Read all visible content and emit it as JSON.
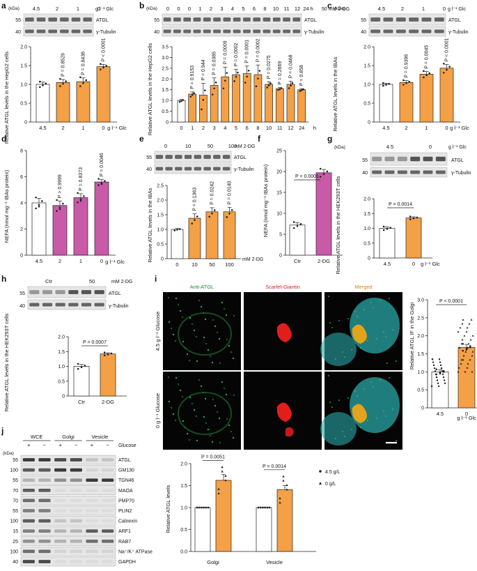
{
  "colors": {
    "orange": "#f4a046",
    "magenta": "#c85aa8",
    "white": "#ffffff",
    "axis": "#222222",
    "blot_bg": "#e6e6e6",
    "band": "#3a3a3a"
  },
  "panels": {
    "a": {
      "letter": "a",
      "unit": "g l⁻¹ Glc",
      "conds": [
        "4.5",
        "2",
        "1",
        "0"
      ],
      "blots": [
        "ATGL",
        "γ-Tubulin"
      ],
      "mw": [
        "55",
        "40"
      ],
      "ylabel": "Relative ATGL levels in the HepG2 cells",
      "xunit": "g l⁻¹ Glc",
      "ticks": [
        "0",
        "0.5",
        "1.0",
        "1.5",
        "2.0"
      ],
      "chart_data": {
        "type": "bar",
        "categories": [
          "4.5",
          "2",
          "1",
          "0"
        ],
        "values": [
          1.0,
          1.05,
          1.07,
          1.47
        ],
        "errors": [
          0.06,
          0.08,
          0.1,
          0.06
        ],
        "pvals": [
          "",
          "P = 0.8529",
          "P = 0.8436",
          "P < 0.0001"
        ],
        "ylim": [
          0,
          2.0
        ],
        "colors": [
          "white",
          "orange",
          "orange",
          "orange"
        ]
      }
    },
    "b": {
      "letter": "b",
      "unit": "50 mM 2-DG",
      "conds": [
        "0",
        "0",
        "0",
        "1",
        "2",
        "3",
        "4",
        "5",
        "6",
        "8",
        "10",
        "11",
        "12",
        "24 h"
      ],
      "blots": [
        "ATGL",
        "γ-Tubulin"
      ],
      "mw": [
        "55",
        "40"
      ],
      "ylabel": "Relative ATGL levels in the HepG2 cells",
      "xunit": "h",
      "ticks": [
        "0",
        "0.5",
        "1.0",
        "1.5",
        "2.0",
        "2.5",
        "3.0",
        "3.5"
      ],
      "chart_data": {
        "type": "bar",
        "categories": [
          "0",
          "1",
          "2",
          "3",
          "4",
          "5",
          "6",
          "8",
          "10",
          "11",
          "12",
          "24"
        ],
        "values": [
          1.0,
          1.3,
          1.25,
          1.7,
          2.1,
          2.2,
          2.25,
          2.2,
          1.75,
          1.55,
          1.75,
          1.5
        ],
        "errors": [
          0.05,
          0.1,
          0.55,
          0.35,
          0.45,
          0.25,
          0.35,
          0.45,
          0.12,
          0.05,
          0.15,
          0.05
        ],
        "pvals": [
          "",
          "P = 0.9153",
          "P = 0.944",
          "P = 0.0385",
          "P = 0.0009",
          "P = 0.0002",
          "P = 0.0001",
          "P = 0.0002",
          "P = 0.0275",
          "P = 0.2669",
          "P = 0.0468",
          "P = 0.858"
        ],
        "ylim": [
          0,
          3.5
        ],
        "colors": [
          "white",
          "orange",
          "orange",
          "orange",
          "orange",
          "orange",
          "orange",
          "orange",
          "orange",
          "orange",
          "orange",
          "orange"
        ]
      }
    },
    "c": {
      "letter": "c",
      "unit": "g l⁻¹ Glc",
      "conds": [
        "4.5",
        "2",
        "1",
        "0"
      ],
      "blots": [
        "ATGL",
        "γ-Tubulin"
      ],
      "mw": [
        "55",
        "40"
      ],
      "ylabel": "Relative ATGL levels in the IBAs",
      "xunit": "g l⁻¹ Glc",
      "ticks": [
        "0",
        "0.5",
        "1.0",
        "1.5",
        "2.0"
      ],
      "chart_data": {
        "type": "bar",
        "categories": [
          "4.5",
          "2",
          "1",
          "0"
        ],
        "values": [
          1.0,
          1.05,
          1.27,
          1.43
        ],
        "errors": [
          0.03,
          0.05,
          0.07,
          0.1
        ],
        "pvals": [
          "",
          "P = 0.9396",
          "P = 0.0045",
          "P < 0.0001"
        ],
        "ylim": [
          0,
          2.0
        ],
        "colors": [
          "white",
          "orange",
          "orange",
          "orange"
        ]
      }
    },
    "d": {
      "letter": "d",
      "ylabel": "NEFA (nmol mg⁻¹ IBAs protein)",
      "xunit": "g l⁻¹ Glc",
      "ticks": [
        "0",
        "2",
        "4",
        "6",
        "8"
      ],
      "chart_data": {
        "type": "bar",
        "categories": [
          "4.5",
          "2",
          "1",
          "0"
        ],
        "values": [
          4.0,
          3.8,
          4.4,
          5.6
        ],
        "errors": [
          0.35,
          0.35,
          0.3,
          0.2
        ],
        "pvals": [
          "",
          "P > 0.9999",
          "P = 0.8373",
          "P = 0.0046"
        ],
        "ylim": [
          0,
          8
        ],
        "colors": [
          "white",
          "magenta",
          "magenta",
          "magenta"
        ]
      }
    },
    "e": {
      "letter": "e",
      "unit": "mM 2-DG",
      "conds": [
        "0",
        "10",
        "50",
        "100"
      ],
      "blots": [
        "ATGL",
        "γ-Tubulin"
      ],
      "mw": [
        "55",
        "40"
      ],
      "ylabel": "Relative ATGL levels in the IBAs",
      "xunit": "mM 2-DG",
      "ticks": [
        "0",
        "0.5",
        "1.0",
        "1.5",
        "2.0",
        "2.5"
      ],
      "chart_data": {
        "type": "bar",
        "categories": [
          "0",
          "10",
          "50",
          "100"
        ],
        "values": [
          1.0,
          1.38,
          1.6,
          1.6
        ],
        "errors": [
          0.03,
          0.15,
          0.14,
          0.15
        ],
        "pvals": [
          "",
          "P = 0.1363",
          "P = 0.0242",
          "P = 0.0140"
        ],
        "ylim": [
          0,
          2.5
        ],
        "colors": [
          "white",
          "orange",
          "orange",
          "orange"
        ]
      }
    },
    "f": {
      "letter": "f",
      "ylabel": "NEFA (nmol mg⁻¹ IBAs protein)",
      "ticks": [
        "0",
        "5",
        "10",
        "15",
        "20",
        "25"
      ],
      "chart_data": {
        "type": "bar",
        "categories": [
          "Ctr",
          "2-DG"
        ],
        "values": [
          7.2,
          19.7
        ],
        "errors": [
          0.6,
          0.8
        ],
        "pvals": [
          "P < 0.0001"
        ],
        "ylim": [
          0,
          25
        ],
        "colors": [
          "white",
          "magenta"
        ]
      }
    },
    "g": {
      "letter": "g",
      "unit": "g l⁻¹ Glc",
      "conds": [
        "4.5",
        "0"
      ],
      "blots": [
        "ATGL",
        "γ-Tubulin"
      ],
      "mw": [
        "55",
        "40"
      ],
      "ylabel": "Relative ATGL levels in the HEK293T cells",
      "xunit": "g l⁻¹ Glc",
      "ticks": [
        "0",
        "0.5",
        "1.0",
        "1.5",
        "2.0"
      ],
      "chart_data": {
        "type": "bar",
        "categories": [
          "4.5",
          "0"
        ],
        "values": [
          1.0,
          1.35
        ],
        "errors": [
          0.05,
          0.04
        ],
        "pvals": [
          "P = 0.0014"
        ],
        "ylim": [
          0,
          2.0
        ],
        "colors": [
          "white",
          "orange"
        ]
      }
    },
    "h": {
      "letter": "h",
      "unit": "mM 2-DG",
      "conds": [
        "Ctr",
        "50"
      ],
      "blots": [
        "ATGL",
        "γ-Tubulin"
      ],
      "mw": [
        "55",
        "40"
      ],
      "ylabel": "Relative ATGL levels in the HEK293T cells",
      "ticks": [
        "0",
        "0.5",
        "1.0",
        "1.5",
        "2.0"
      ],
      "chart_data": {
        "type": "bar",
        "categories": [
          "Ctr",
          "2-DG"
        ],
        "values": [
          1.0,
          1.42
        ],
        "errors": [
          0.07,
          0.04
        ],
        "pvals": [
          "P = 0.0007"
        ],
        "ylim": [
          0,
          2.0
        ],
        "colors": [
          "white",
          "orange"
        ]
      }
    },
    "i": {
      "letter": "i",
      "channels": [
        "Anti-ATGL",
        "Scarlet-Giantin",
        "Merged"
      ],
      "rows": [
        "4.5 g l⁻¹ Glucose",
        "0 g l⁻¹ Glucose"
      ],
      "ylabel": "Relative ATGL IF in the Golgi",
      "xunit": "g l⁻¹ Glc",
      "ticks": [
        "0",
        "0.5",
        "1.0",
        "1.5",
        "2.0",
        "2.5",
        "3.0"
      ],
      "chart_data": {
        "type": "bar",
        "categories": [
          "4.5",
          "0"
        ],
        "values": [
          1.0,
          1.68
        ],
        "errors": [
          0.06,
          0.08
        ],
        "pvals": [
          "P < 0.0001"
        ],
        "ylim": [
          0,
          3.0
        ],
        "colors": [
          "white",
          "orange"
        ]
      },
      "lower": {
        "ylabel": "Relative ATGL levels",
        "legend": [
          "4.5 g/L",
          "0 g/L"
        ],
        "groups": [
          "Golgi",
          "Vesicle"
        ],
        "ticks": [
          "0.0",
          "0.5",
          "1.0",
          "1.5",
          "2.0"
        ],
        "chart_data": {
          "type": "bar",
          "categories": [
            "Golgi",
            "Vesicle"
          ],
          "series": [
            {
              "name": "4.5 g/L",
              "values": [
                1.0,
                1.0
              ]
            },
            {
              "name": "0 g/L",
              "values": [
                1.62,
                1.41
              ]
            }
          ],
          "errors": [
            0.13,
            0.09
          ],
          "pvals": [
            "P = 0.0051",
            "P = 0.0014"
          ],
          "ylim": [
            0,
            2.0
          ]
        }
      }
    },
    "j": {
      "letter": "j",
      "groups": [
        "WCE",
        "Golgi",
        "Vesicle"
      ],
      "signs": [
        "+",
        "−",
        "+",
        "−",
        "+",
        "−"
      ],
      "condition": "Glucose",
      "unit": "(kDa)",
      "rows": [
        {
          "mw": "55",
          "label": "ATGL"
        },
        {
          "mw": "100",
          "label": "GM130"
        },
        {
          "mw": "55",
          "label": "TGN46"
        },
        {
          "mw": "70",
          "label": "MAOA"
        },
        {
          "mw": "70",
          "label": "PMP70"
        },
        {
          "mw": "55",
          "label": "PLIN2"
        },
        {
          "mw": "100",
          "label": "Calnexin"
        },
        {
          "mw": "15",
          "label": "ARF1"
        },
        {
          "mw": "25",
          "label": "RAB7"
        },
        {
          "mw": "100",
          "label": "Na⁺/K⁺ ATPase"
        },
        {
          "mw": "40",
          "label": "GAPDH"
        }
      ]
    }
  },
  "kda": "(kDa)"
}
